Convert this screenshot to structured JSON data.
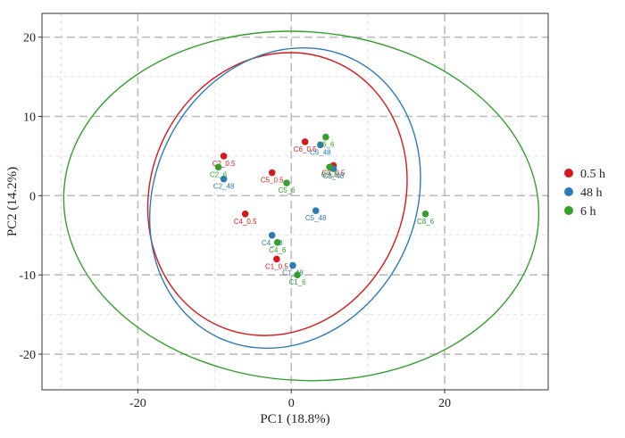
{
  "chart_data": {
    "type": "scatter",
    "title": "",
    "xlabel": "PC1 (18.8%)",
    "ylabel": "PC2 (14.2%)",
    "xlim": [
      -32.5,
      33.5
    ],
    "ylim": [
      -24.5,
      23
    ],
    "xticks": [
      -20,
      0,
      20
    ],
    "yticks": [
      -20,
      -10,
      0,
      10,
      20
    ],
    "grid": true,
    "legend_position": "right",
    "series": [
      {
        "name": "0.5 h",
        "color": "#d7191c",
        "points": [
          {
            "x": -8.8,
            "y": 5.0,
            "label": "C2_0.5"
          },
          {
            "x": -2.5,
            "y": 2.9,
            "label": "C5_0.5"
          },
          {
            "x": 1.8,
            "y": 6.8,
            "label": "C6_0.5"
          },
          {
            "x": 5.5,
            "y": 3.8,
            "label": "C3_0.5"
          },
          {
            "x": -6.0,
            "y": -2.3,
            "label": "C4_0.5"
          },
          {
            "x": -1.9,
            "y": -8.0,
            "label": "C1_0.5"
          }
        ]
      },
      {
        "name": "48 h",
        "color": "#2c7bb6",
        "points": [
          {
            "x": -8.8,
            "y": 2.1,
            "label": "C2_48"
          },
          {
            "x": 3.8,
            "y": 6.4,
            "label": "C6_48"
          },
          {
            "x": 5.5,
            "y": 3.4,
            "label": "C3_48"
          },
          {
            "x": 3.2,
            "y": -1.9,
            "label": "C5_48"
          },
          {
            "x": -2.5,
            "y": -5.0,
            "label": "C4_48"
          },
          {
            "x": 0.2,
            "y": -8.8,
            "label": "C1_48"
          }
        ]
      },
      {
        "name": "6 h",
        "color": "#33a02c",
        "points": [
          {
            "x": -9.5,
            "y": 3.6,
            "label": "C2_6"
          },
          {
            "x": -0.6,
            "y": 1.6,
            "label": "C5_6"
          },
          {
            "x": 4.5,
            "y": 7.4,
            "label": "C6_6"
          },
          {
            "x": 5.0,
            "y": 3.6,
            "label": "C3_6"
          },
          {
            "x": -1.8,
            "y": -5.9,
            "label": "C4_6"
          },
          {
            "x": 0.8,
            "y": -10.0,
            "label": "C1_6"
          },
          {
            "x": 17.5,
            "y": -2.3,
            "label": "C8_6"
          }
        ]
      }
    ],
    "ellipses": [
      {
        "series": "0.5 h",
        "cx": -1.8,
        "cy": 0.2,
        "rx": 16.5,
        "ry": 18.2,
        "angle": 24
      },
      {
        "series": "48 h",
        "cx": -0.8,
        "cy": -0.3,
        "rx": 17.0,
        "ry": 19.5,
        "angle": 26
      },
      {
        "series": "6 h",
        "cx": 1.3,
        "cy": -1.3,
        "rx": 31.0,
        "ry": 22.0,
        "angle": 4
      }
    ]
  }
}
